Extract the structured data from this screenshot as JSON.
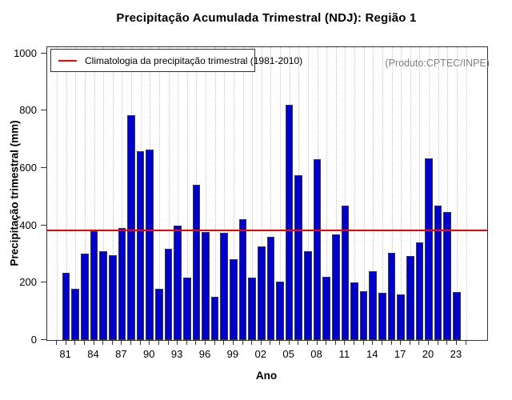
{
  "title": "Precipitação Acumulada Trimestral (NDJ): Região 1",
  "annotation": "(Produto:CPTEC/INPE)",
  "legend": {
    "label": "Climatologia da precipitação trimestral (1981-2010)"
  },
  "axes": {
    "x_label": "Ano",
    "y_label": "Precipitação trimestral (mm)",
    "y_ticks": [
      "0",
      "200",
      "400",
      "600",
      "800",
      "1000"
    ],
    "x_tick_labels": [
      "81",
      "84",
      "87",
      "90",
      "93",
      "96",
      "99",
      "02",
      "05",
      "08",
      "11",
      "14",
      "17",
      "20",
      "23"
    ]
  },
  "colors": {
    "bar_fill": "#0000CD",
    "bar_border": "#3a3a3a",
    "climatology_line": "#FF0000",
    "grid": "#c9c9c9",
    "annotation_text": "#7f7f7f"
  },
  "chart_data": {
    "type": "bar",
    "title": "Precipitação Acumulada Trimestral (NDJ): Região 1",
    "xlabel": "Ano",
    "ylabel": "Precipitação trimestral (mm)",
    "ylim": [
      0,
      1000
    ],
    "grid": "vertical-dotted",
    "legend_position": "top-left",
    "years": [
      1981,
      1982,
      1983,
      1984,
      1985,
      1986,
      1987,
      1988,
      1989,
      1990,
      1991,
      1992,
      1993,
      1994,
      1995,
      1996,
      1997,
      1998,
      1999,
      2000,
      2001,
      2002,
      2003,
      2004,
      2005,
      2006,
      2007,
      2008,
      2009,
      2010,
      2011,
      2012,
      2013,
      2014,
      2015,
      2016,
      2017,
      2018,
      2019,
      2020,
      2021,
      2022,
      2023
    ],
    "values": [
      233,
      179,
      300,
      380,
      311,
      296,
      391,
      785,
      657,
      665,
      179,
      319,
      398,
      219,
      542,
      377,
      150,
      375,
      281,
      420,
      218,
      327,
      359,
      204,
      820,
      575,
      311,
      630,
      221,
      368,
      470,
      200,
      170,
      240,
      165,
      305,
      160,
      293,
      340,
      632,
      468,
      447,
      168
    ],
    "climatology_1981_2010": 383,
    "axis_tick_year_range": [
      1980,
      2024
    ],
    "label_every_n_years": 3
  }
}
